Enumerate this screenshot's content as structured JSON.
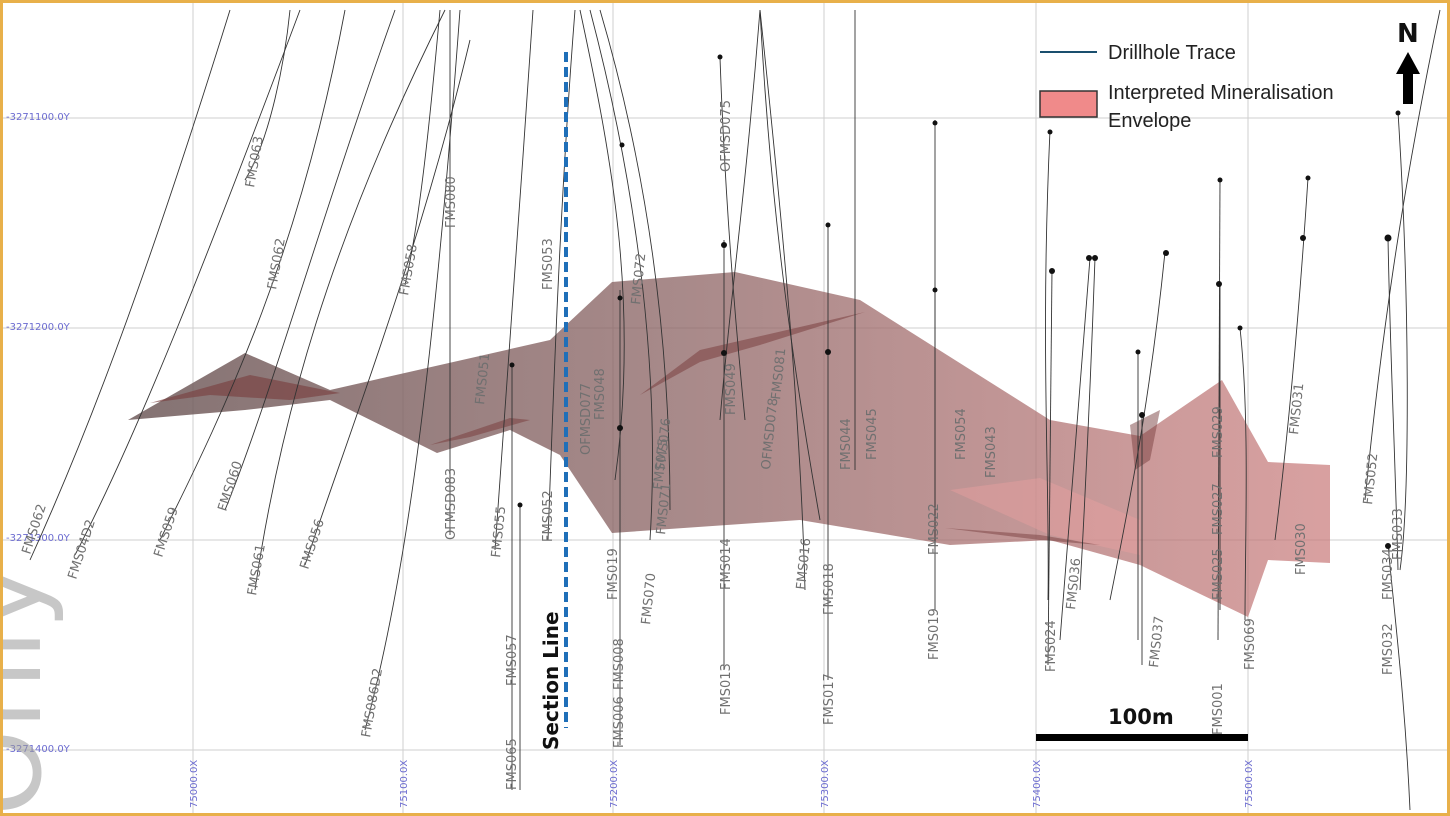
{
  "map": {
    "northing_labels": [
      "-3271100.0Y",
      "-3271200.0Y",
      "-3271300.0Y",
      "-3271400.0Y"
    ],
    "easting_labels": [
      "75000.0X",
      "75100.0X",
      "75200.0X",
      "75300.0X",
      "75400.0X",
      "75500.0X"
    ],
    "north_arrow_label": "N",
    "section_line_label": "Section Line",
    "scale_bar_label": "100m",
    "legend": {
      "drillhole_trace": "Drillhole Trace",
      "envelope_line1": "Interpreted Mineralisation",
      "envelope_line2": "Envelope"
    },
    "watermark_text": "Only",
    "colors": {
      "frame": "#e8b04a",
      "envelope": "#8a6a6a",
      "envelope_red": "#d88080",
      "section_line": "#1f6fb8",
      "grid_label": "#6b6bd0"
    },
    "drillholes": [
      "FMS062",
      "FMS04D2",
      "FMS059",
      "FMS061",
      "FMS060",
      "FMS056",
      "FMS063",
      "FMS062",
      "FMS058",
      "FMS080",
      "OFMSD083",
      "FMS086D2",
      "FMS055",
      "FMS057",
      "FMS065",
      "FMS051",
      "FMS053",
      "FMS052",
      "OFMSD077",
      "FMS048",
      "FMS019",
      "FMS070",
      "FMS071",
      "FMS072",
      "FMS006",
      "FMS008",
      "FMS075",
      "OFMSD075",
      "FMS076",
      "FMS049",
      "FMS014",
      "FMS013",
      "OFMSD078",
      "FMS081",
      "FMS016",
      "FMS044",
      "FMS045",
      "FMS017",
      "FMS018",
      "FMS054",
      "FMS043",
      "FMS019",
      "FMS022",
      "FMS024",
      "FMS036",
      "FMS037",
      "FMS029",
      "FMS027",
      "FMS025",
      "FMS001",
      "FMS069",
      "FMS031",
      "FMS030",
      "FMS052",
      "FMS033",
      "FMS034",
      "FMS032"
    ]
  }
}
